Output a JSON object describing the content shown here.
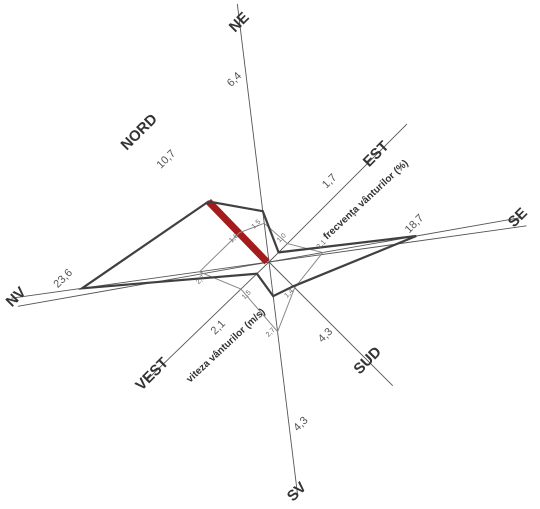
{
  "chart_data": {
    "type": "radar",
    "directions": [
      "NORD",
      "NE",
      "EST",
      "SE",
      "SUD",
      "SV",
      "VEST",
      "NV"
    ],
    "series": [
      {
        "name": "frecvența vânturilor (%)",
        "values": [
          10.7,
          6.4,
          1.7,
          18.7,
          4.3,
          4.3,
          2.1,
          23.6
        ]
      },
      {
        "name": "viteza vânturilor (m/s)",
        "values": [
          1.6,
          1.5,
          1.0,
          2.1,
          1.4,
          2.7,
          1.5,
          2.7
        ]
      }
    ],
    "value_labels": [
      "10,7",
      "6,4",
      "1,7",
      "18,7",
      "4,3",
      "4,3",
      "2,1",
      "23,6"
    ],
    "speed_labels": [
      "1,6",
      "1,5",
      "1,0",
      "2,1",
      "1,4",
      "2,7",
      "1,5",
      "2,7"
    ],
    "axis_titles": {
      "frequency": "frecvența vânturilor (%)",
      "speed": "viteza vânturilor (m/s)"
    },
    "colors": {
      "dominant_direction": "#a31c1c",
      "frequency_line": "#404040",
      "speed_line": "#888888",
      "axis": "#555555"
    }
  }
}
